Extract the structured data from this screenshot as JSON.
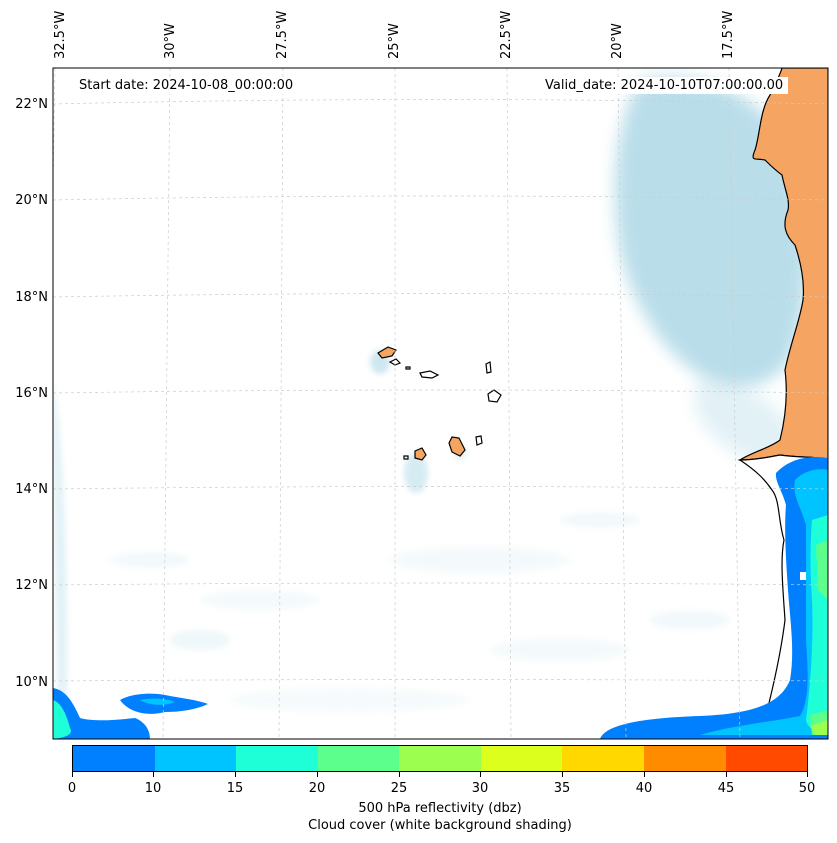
{
  "header": {
    "start_date": "Start date: 2024-10-08_00:00:00",
    "valid_date": "Valid_date: 2024-10-10T07:00:00.00"
  },
  "axes": {
    "longitude_labels": [
      "32.5°W",
      "30°W",
      "27.5°W",
      "25°W",
      "22.5°W",
      "20°W",
      "17.5°W"
    ],
    "latitude_labels": [
      "22°N",
      "20°N",
      "18°N",
      "16°N",
      "14°N",
      "12°N",
      "10°N"
    ]
  },
  "colorbar": {
    "levels": [
      "0",
      "10",
      "15",
      "20",
      "25",
      "30",
      "35",
      "40",
      "45",
      "50"
    ],
    "colors": [
      "#0080ff",
      "#00c4ff",
      "#1effd8",
      "#5cff8c",
      "#9cff50",
      "#dcff1e",
      "#ffd800",
      "#ff8c00",
      "#ff4a00"
    ],
    "label": "500 hPa reflectivity (dbz)",
    "sublabel": "Cloud cover (white background shading)"
  },
  "map_colors": {
    "land": "#f5a462",
    "cloud": "#add8e6",
    "coastline": "#000000",
    "gridline": "#cccccc"
  }
}
